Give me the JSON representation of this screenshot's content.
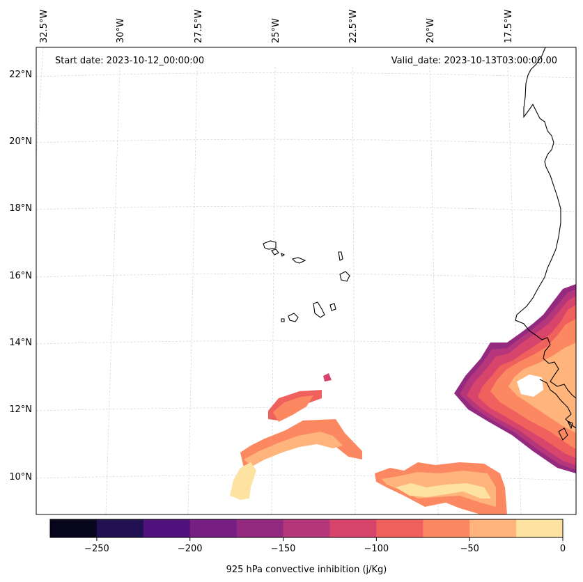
{
  "header": {
    "start_date": "Start date: 2023-10-12_00:00:00",
    "valid_date": "Valid_date: 2023-10-13T03:00:00.00"
  },
  "longitude_labels": [
    "32.5°W",
    "30°W",
    "27.5°W",
    "25°W",
    "22.5°W",
    "20°W",
    "17.5°W"
  ],
  "latitude_labels": [
    "22°N",
    "20°N",
    "18°N",
    "16°N",
    "14°N",
    "12°N",
    "10°N"
  ],
  "colorbar": {
    "label": "925 hPa convective inhibition (j/Kg)",
    "tick_labels": [
      "−250",
      "−200",
      "−150",
      "−100",
      "−50",
      "0"
    ],
    "levels": [
      -275,
      -250,
      -225,
      -200,
      -175,
      -150,
      -125,
      -100,
      -75,
      -50,
      -25,
      0
    ],
    "colors": [
      "#07061c",
      "#221150",
      "#4f117b",
      "#761e81",
      "#932a7f",
      "#b5367a",
      "#d8456c",
      "#f0605d",
      "#fb8861",
      "#feb47b",
      "#fde2a1"
    ]
  },
  "colors": {
    "coastline": "#000000",
    "gridline": "#d9d9d9",
    "background": "#ffffff"
  }
}
